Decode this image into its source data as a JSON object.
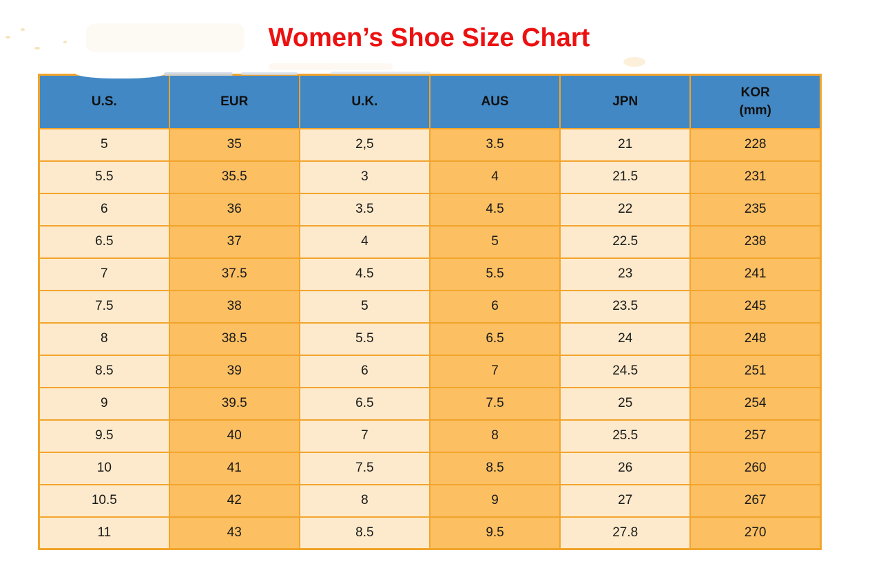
{
  "title": {
    "text": "Women’s Shoe Size Chart"
  },
  "colors": {
    "title-red": "#ec1111",
    "header-blue": "#4288c4",
    "cell-cream": "#fdeacc",
    "cell-orange": "#fcbf62",
    "border-orange": "#f2a42c",
    "text-dark": "#1a1a1a"
  },
  "table": {
    "headers": [
      {
        "key": "us",
        "label": "U.S.",
        "sublabel": ""
      },
      {
        "key": "eur",
        "label": "EUR",
        "sublabel": ""
      },
      {
        "key": "uk",
        "label": "U.K.",
        "sublabel": ""
      },
      {
        "key": "aus",
        "label": "AUS",
        "sublabel": ""
      },
      {
        "key": "jpn",
        "label": "JPN",
        "sublabel": ""
      },
      {
        "key": "kor",
        "label": "KOR",
        "sublabel": "(mm)"
      }
    ],
    "rows": [
      [
        "5",
        "35",
        "2,5",
        "3.5",
        "21",
        "228"
      ],
      [
        "5.5",
        "35.5",
        "3",
        "4",
        "21.5",
        "231"
      ],
      [
        "6",
        "36",
        "3.5",
        "4.5",
        "22",
        "235"
      ],
      [
        "6.5",
        "37",
        "4",
        "5",
        "22.5",
        "238"
      ],
      [
        "7",
        "37.5",
        "4.5",
        "5.5",
        "23",
        "241"
      ],
      [
        "7.5",
        "38",
        "5",
        "6",
        "23.5",
        "245"
      ],
      [
        "8",
        "38.5",
        "5.5",
        "6.5",
        "24",
        "248"
      ],
      [
        "8.5",
        "39",
        "6",
        "7",
        "24.5",
        "251"
      ],
      [
        "9",
        "39.5",
        "6.5",
        "7.5",
        "25",
        "254"
      ],
      [
        "9.5",
        "40",
        "7",
        "8",
        "25.5",
        "257"
      ],
      [
        "10",
        "41",
        "7.5",
        "8.5",
        "26",
        "260"
      ],
      [
        "10.5",
        "42",
        "8",
        "9",
        "27",
        "267"
      ],
      [
        "11",
        "43",
        "8.5",
        "9.5",
        "27.8",
        "270"
      ]
    ]
  },
  "chart_data": {
    "type": "table",
    "title": "Women’s Shoe Size Chart",
    "columns": [
      "U.S.",
      "EUR",
      "U.K.",
      "AUS",
      "JPN",
      "KOR (mm)"
    ],
    "rows": [
      [
        "5",
        "35",
        "2,5",
        "3.5",
        "21",
        "228"
      ],
      [
        "5.5",
        "35.5",
        "3",
        "4",
        "21.5",
        "231"
      ],
      [
        "6",
        "36",
        "3.5",
        "4.5",
        "22",
        "235"
      ],
      [
        "6.5",
        "37",
        "4",
        "5",
        "22.5",
        "238"
      ],
      [
        "7",
        "37.5",
        "4.5",
        "5.5",
        "23",
        "241"
      ],
      [
        "7.5",
        "38",
        "5",
        "6",
        "23.5",
        "245"
      ],
      [
        "8",
        "38.5",
        "5.5",
        "6.5",
        "24",
        "248"
      ],
      [
        "8.5",
        "39",
        "6",
        "7",
        "24.5",
        "251"
      ],
      [
        "9",
        "39.5",
        "6.5",
        "7.5",
        "25",
        "254"
      ],
      [
        "9.5",
        "40",
        "7",
        "8",
        "25.5",
        "257"
      ],
      [
        "10",
        "41",
        "7.5",
        "8.5",
        "26",
        "260"
      ],
      [
        "10.5",
        "42",
        "8",
        "9",
        "27",
        "267"
      ],
      [
        "11",
        "43",
        "8.5",
        "9.5",
        "27.8",
        "270"
      ]
    ],
    "layout_hints": {
      "header_background": "#4288c4",
      "column_fill_alternation": [
        "#fdeacc",
        "#fcbf62"
      ],
      "grid": "on",
      "grid_color": "#f2a42c"
    }
  }
}
